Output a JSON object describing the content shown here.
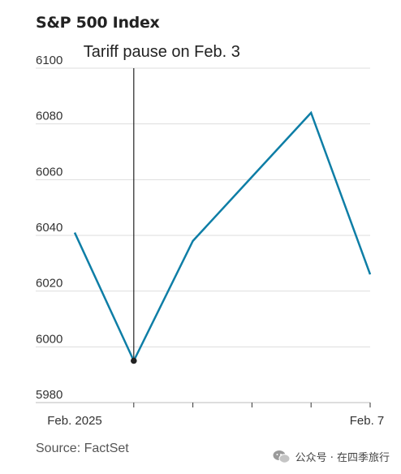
{
  "chart_data": {
    "type": "line",
    "title": "S&P 500 Index",
    "x": [
      "Feb. 2025",
      "",
      "",
      "",
      "",
      "Feb. 7"
    ],
    "x_tick_labels": [
      "Feb. 2025",
      "Feb. 7"
    ],
    "series": [
      {
        "x": [
          0,
          1,
          2,
          3,
          4,
          5
        ],
        "values": [
          6041,
          5995,
          6038,
          6061,
          6084,
          6026
        ]
      }
    ],
    "ylim": [
      5980,
      6100
    ],
    "y_ticks": [
      5980,
      6000,
      6020,
      6040,
      6060,
      6080,
      6100
    ],
    "x_range": [
      0,
      5
    ],
    "grid": true,
    "annotation": {
      "text": "Tariff pause on Feb. 3",
      "x_index": 1
    },
    "source": "Source: FactSet",
    "colors": {
      "line": "#0e7ea6",
      "marker": "#222222",
      "grid": "#dddddd"
    }
  },
  "watermark": {
    "text": "公众号 · 在四季旅行"
  }
}
